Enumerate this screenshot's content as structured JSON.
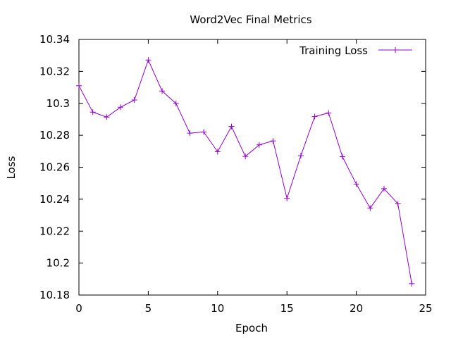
{
  "chart_data": {
    "type": "line",
    "title": "Word2Vec Final Metrics",
    "xlabel": "Epoch",
    "ylabel": "Loss",
    "xlim": [
      0,
      25
    ],
    "ylim": [
      10.18,
      10.34
    ],
    "xticks": [
      0,
      5,
      10,
      15,
      20,
      25
    ],
    "yticks": [
      10.18,
      10.2,
      10.22,
      10.24,
      10.26,
      10.28,
      10.3,
      10.32,
      10.34
    ],
    "xtick_labels": [
      "0",
      "5",
      "10",
      "15",
      "20",
      "25"
    ],
    "ytick_labels": [
      "10.18",
      "10.2",
      "10.22",
      "10.24",
      "10.26",
      "10.28",
      "10.3",
      "10.32",
      "10.34"
    ],
    "grid": false,
    "legend_position": "top-right",
    "series": [
      {
        "name": "Training Loss",
        "color": "#9400d3",
        "marker": "plus",
        "x": [
          0,
          1,
          2,
          3,
          4,
          5,
          6,
          7,
          8,
          9,
          10,
          11,
          12,
          13,
          14,
          15,
          16,
          17,
          18,
          19,
          20,
          21,
          22,
          23,
          24
        ],
        "y": [
          10.311,
          10.2945,
          10.2914,
          10.2976,
          10.3021,
          10.3271,
          10.3077,
          10.2999,
          10.2813,
          10.2821,
          10.2697,
          10.2855,
          10.2668,
          10.274,
          10.2765,
          10.2405,
          10.2672,
          10.2917,
          10.294,
          10.2666,
          10.2495,
          10.2344,
          10.2466,
          10.2371,
          10.1871
        ]
      }
    ]
  }
}
